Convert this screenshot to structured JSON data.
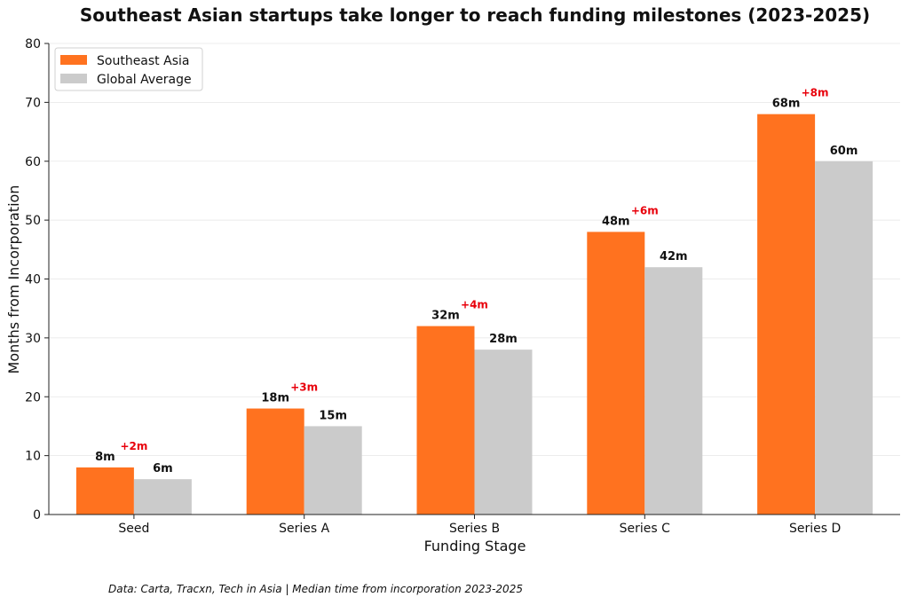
{
  "chart_data": {
    "type": "bar",
    "title": "Southeast Asian startups take longer to reach funding milestones (2023-2025)",
    "xlabel": "Funding Stage",
    "ylabel": "Months from Incorporation",
    "categories": [
      "Seed",
      "Series A",
      "Series B",
      "Series C",
      "Series D"
    ],
    "series": [
      {
        "name": "Southeast Asia",
        "values": [
          8,
          18,
          32,
          48,
          68
        ],
        "color": "#ff721f"
      },
      {
        "name": "Global Average",
        "values": [
          6,
          15,
          28,
          42,
          60
        ],
        "color": "#cbcbcb"
      }
    ],
    "value_labels": {
      "Southeast Asia": [
        "8m",
        "18m",
        "32m",
        "48m",
        "68m"
      ],
      "Global Average": [
        "6m",
        "15m",
        "28m",
        "42m",
        "60m"
      ]
    },
    "gap_labels": [
      "+2m",
      "+3m",
      "+4m",
      "+6m",
      "+8m"
    ],
    "gap_label_color": "#e8000b",
    "ylim": [
      0,
      80
    ],
    "yticks": [
      0,
      10,
      20,
      30,
      40,
      50,
      60,
      70,
      80
    ],
    "grid": "horizontal",
    "legend_position": "top-left"
  },
  "footer": {
    "source": "Data: Carta, Tracxn, Tech in Asia | Median time from incorporation 2023-2025"
  }
}
